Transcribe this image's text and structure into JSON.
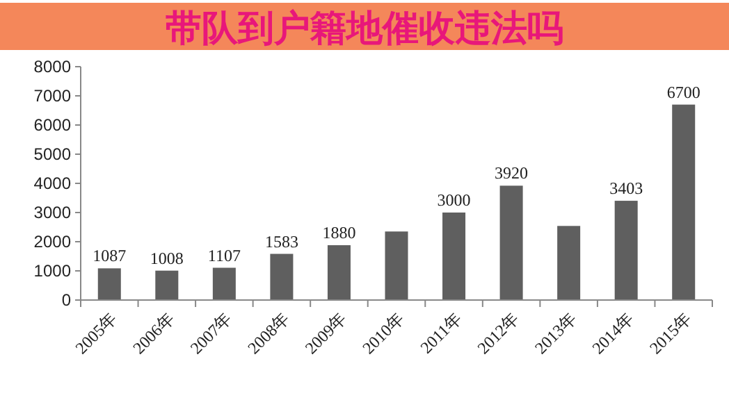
{
  "chart_data": {
    "type": "bar",
    "title": "带队到户籍地催收违法吗",
    "categories": [
      "2005年",
      "2006年",
      "2007年",
      "2008年",
      "2009年",
      "2010年",
      "2011年",
      "2012年",
      "2013年",
      "2014年",
      "2015年"
    ],
    "values": [
      1087,
      1008,
      1107,
      1583,
      1880,
      2350,
      3000,
      3920,
      2540,
      3403,
      6700
    ],
    "value_labels": [
      "1087",
      "1008",
      "1107",
      "1583",
      "1880",
      null,
      "3000",
      "3920",
      null,
      "3403",
      "6700"
    ],
    "color": "#5f5f5f",
    "ylim": [
      0,
      8000
    ],
    "yticks": [
      0,
      1000,
      2000,
      3000,
      4000,
      5000,
      6000,
      7000,
      8000
    ],
    "grid": false
  }
}
